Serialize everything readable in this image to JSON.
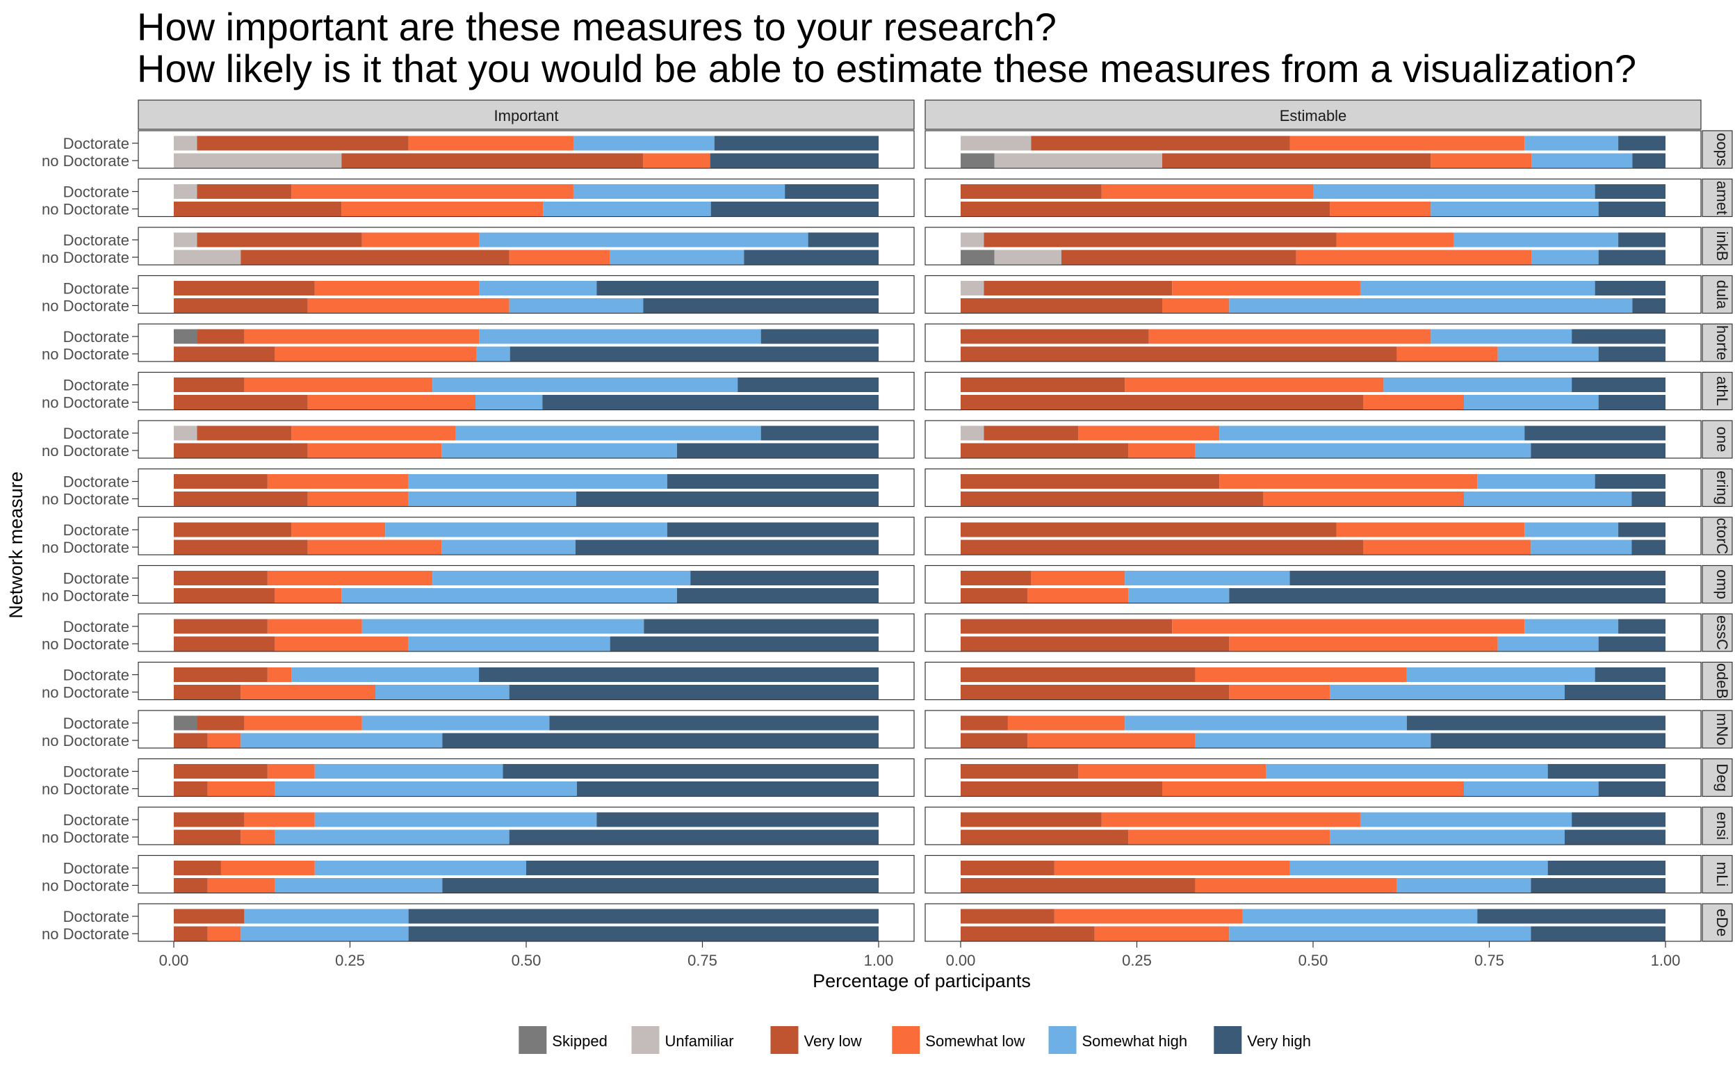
{
  "chart_data": {
    "type": "bar",
    "orientation": "horizontal",
    "stacked": true,
    "title_lines": [
      "How important are these measures to your research?",
      "How likely is it that you would be able to estimate these measures from a visualization?"
    ],
    "xlabel": "Percentage of participants",
    "ylabel": "Network measure",
    "xlim": [
      0,
      1
    ],
    "x_ticks": [
      "0.00",
      "0.25",
      "0.50",
      "0.75",
      "1.00"
    ],
    "grid": false,
    "legend_position": "bottom",
    "panels": [
      "Important",
      "Estimable"
    ],
    "groups": [
      "Doctorate",
      "no Doctorate"
    ],
    "series": [
      {
        "name": "Skipped",
        "color": "#7a7a7a"
      },
      {
        "name": "Unfamiliar",
        "color": "#c3bcba"
      },
      {
        "name": "Very low",
        "color": "#c05330"
      },
      {
        "name": "Somewhat low",
        "color": "#fb6c3b"
      },
      {
        "name": "Somewhat high",
        "color": "#6eb0e6"
      },
      {
        "name": "Very high",
        "color": "#3a5a78"
      }
    ],
    "facets": [
      {
        "strip": "oops",
        "Important": {
          "Doctorate": [
            0,
            0.033,
            0.3,
            0.234,
            0.2,
            0.233
          ],
          "no Doctorate": [
            0,
            0.238,
            0.428,
            0.095,
            0,
            0.239
          ]
        },
        "Estimable": {
          "Doctorate": [
            0,
            0.1,
            0.367,
            0.333,
            0.133,
            0.067
          ],
          "no Doctorate": [
            0.048,
            0.238,
            0.381,
            0.143,
            0.143,
            0.047
          ]
        }
      },
      {
        "strip": "amet",
        "Important": {
          "Doctorate": [
            0,
            0.033,
            0.134,
            0.4,
            0.3,
            0.133
          ],
          "no Doctorate": [
            0,
            0,
            0.238,
            0.286,
            0.238,
            0.238
          ]
        },
        "Estimable": {
          "Doctorate": [
            0,
            0,
            0.2,
            0.3,
            0.4,
            0.1
          ],
          "no Doctorate": [
            0,
            0,
            0.524,
            0.143,
            0.238,
            0.095
          ]
        }
      },
      {
        "strip": "inkB",
        "Important": {
          "Doctorate": [
            0,
            0.033,
            0.234,
            0.166,
            0.467,
            0.1
          ],
          "no Doctorate": [
            0,
            0.095,
            0.381,
            0.143,
            0.19,
            0.191
          ]
        },
        "Estimable": {
          "Doctorate": [
            0,
            0.033,
            0.5,
            0.167,
            0.233,
            0.067
          ],
          "no Doctorate": [
            0.048,
            0.095,
            0.333,
            0.334,
            0.095,
            0.095
          ]
        }
      },
      {
        "strip": "dula",
        "Important": {
          "Doctorate": [
            0,
            0,
            0.2,
            0.233,
            0.167,
            0.4
          ],
          "no Doctorate": [
            0,
            0,
            0.19,
            0.286,
            0.19,
            0.334
          ]
        },
        "Estimable": {
          "Doctorate": [
            0,
            0.033,
            0.267,
            0.267,
            0.333,
            0.1
          ],
          "no Doctorate": [
            0,
            0,
            0.286,
            0.095,
            0.572,
            0.047
          ]
        }
      },
      {
        "strip": "horte",
        "Important": {
          "Doctorate": [
            0.033,
            0,
            0.067,
            0.333,
            0.4,
            0.167
          ],
          "no Doctorate": [
            0,
            0,
            0.143,
            0.286,
            0.048,
            0.523
          ]
        },
        "Estimable": {
          "Doctorate": [
            0,
            0,
            0.267,
            0.4,
            0.2,
            0.133
          ],
          "no Doctorate": [
            0,
            0,
            0.619,
            0.143,
            0.143,
            0.095
          ]
        }
      },
      {
        "strip": "athL",
        "Important": {
          "Doctorate": [
            0,
            0,
            0.1,
            0.267,
            0.433,
            0.2
          ],
          "no Doctorate": [
            0,
            0,
            0.19,
            0.238,
            0.095,
            0.477
          ]
        },
        "Estimable": {
          "Doctorate": [
            0,
            0,
            0.233,
            0.367,
            0.267,
            0.133
          ],
          "no Doctorate": [
            0,
            0,
            0.571,
            0.143,
            0.191,
            0.095
          ]
        }
      },
      {
        "strip": "one",
        "Important": {
          "Doctorate": [
            0,
            0.033,
            0.134,
            0.233,
            0.433,
            0.167
          ],
          "no Doctorate": [
            0,
            0,
            0.19,
            0.19,
            0.334,
            0.286
          ]
        },
        "Estimable": {
          "Doctorate": [
            0,
            0.033,
            0.134,
            0.2,
            0.433,
            0.2
          ],
          "no Doctorate": [
            0,
            0,
            0.238,
            0.095,
            0.476,
            0.191
          ]
        }
      },
      {
        "strip": "ering",
        "Important": {
          "Doctorate": [
            0,
            0,
            0.133,
            0.2,
            0.367,
            0.3
          ],
          "no Doctorate": [
            0,
            0,
            0.19,
            0.143,
            0.238,
            0.429
          ]
        },
        "Estimable": {
          "Doctorate": [
            0,
            0,
            0.367,
            0.366,
            0.167,
            0.1
          ],
          "no Doctorate": [
            0,
            0,
            0.429,
            0.285,
            0.238,
            0.048
          ]
        }
      },
      {
        "strip": "ctorC",
        "Important": {
          "Doctorate": [
            0,
            0,
            0.167,
            0.133,
            0.4,
            0.3
          ],
          "no Doctorate": [
            0,
            0,
            0.19,
            0.19,
            0.19,
            0.43
          ]
        },
        "Estimable": {
          "Doctorate": [
            0,
            0,
            0.533,
            0.267,
            0.133,
            0.067
          ],
          "no Doctorate": [
            0,
            0,
            0.571,
            0.238,
            0.143,
            0.048
          ]
        }
      },
      {
        "strip": "omp",
        "Important": {
          "Doctorate": [
            0,
            0,
            0.133,
            0.234,
            0.366,
            0.267
          ],
          "no Doctorate": [
            0,
            0,
            0.143,
            0.095,
            0.476,
            0.286
          ]
        },
        "Estimable": {
          "Doctorate": [
            0,
            0,
            0.1,
            0.133,
            0.234,
            0.533
          ],
          "no Doctorate": [
            0,
            0,
            0.095,
            0.143,
            0.143,
            0.619
          ]
        }
      },
      {
        "strip": "essC",
        "Important": {
          "Doctorate": [
            0,
            0,
            0.133,
            0.134,
            0.4,
            0.333
          ],
          "no Doctorate": [
            0,
            0,
            0.143,
            0.19,
            0.286,
            0.381
          ]
        },
        "Estimable": {
          "Doctorate": [
            0,
            0,
            0.3,
            0.5,
            0.133,
            0.067
          ],
          "no Doctorate": [
            0,
            0,
            0.381,
            0.381,
            0.143,
            0.095
          ]
        }
      },
      {
        "strip": "odeB",
        "Important": {
          "Doctorate": [
            0,
            0,
            0.133,
            0.034,
            0.266,
            0.567
          ],
          "no Doctorate": [
            0,
            0,
            0.095,
            0.191,
            0.19,
            0.524
          ]
        },
        "Estimable": {
          "Doctorate": [
            0,
            0,
            0.333,
            0.3,
            0.267,
            0.1
          ],
          "no Doctorate": [
            0,
            0,
            0.381,
            0.143,
            0.333,
            0.143
          ]
        }
      },
      {
        "strip": "mNo",
        "Important": {
          "Doctorate": [
            0.033,
            0,
            0.067,
            0.167,
            0.266,
            0.467
          ],
          "no Doctorate": [
            0,
            0,
            0.048,
            0.047,
            0.286,
            0.619
          ]
        },
        "Estimable": {
          "Doctorate": [
            0,
            0,
            0.067,
            0.166,
            0.4,
            0.367
          ],
          "no Doctorate": [
            0,
            0,
            0.095,
            0.238,
            0.334,
            0.333
          ]
        }
      },
      {
        "strip": "Deg",
        "Important": {
          "Doctorate": [
            0,
            0,
            0.133,
            0.067,
            0.267,
            0.533
          ],
          "no Doctorate": [
            0,
            0,
            0.048,
            0.095,
            0.429,
            0.428
          ]
        },
        "Estimable": {
          "Doctorate": [
            0,
            0,
            0.167,
            0.266,
            0.4,
            0.167
          ],
          "no Doctorate": [
            0,
            0,
            0.286,
            0.428,
            0.191,
            0.095
          ]
        }
      },
      {
        "strip": "ensi",
        "Important": {
          "Doctorate": [
            0,
            0,
            0.1,
            0.1,
            0.4,
            0.4
          ],
          "no Doctorate": [
            0,
            0,
            0.095,
            0.048,
            0.333,
            0.524
          ]
        },
        "Estimable": {
          "Doctorate": [
            0,
            0,
            0.2,
            0.367,
            0.3,
            0.133
          ],
          "no Doctorate": [
            0,
            0,
            0.238,
            0.286,
            0.333,
            0.143
          ]
        }
      },
      {
        "strip": "mLi",
        "Important": {
          "Doctorate": [
            0,
            0,
            0.067,
            0.133,
            0.3,
            0.5
          ],
          "no Doctorate": [
            0,
            0,
            0.048,
            0.095,
            0.238,
            0.619
          ]
        },
        "Estimable": {
          "Doctorate": [
            0,
            0,
            0.133,
            0.334,
            0.366,
            0.167
          ],
          "no Doctorate": [
            0,
            0,
            0.333,
            0.286,
            0.19,
            0.191
          ]
        }
      },
      {
        "strip": "eDe",
        "Important": {
          "Doctorate": [
            0,
            0,
            0.1,
            0,
            0.233,
            0.667
          ],
          "no Doctorate": [
            0,
            0,
            0.048,
            0.047,
            0.238,
            0.667
          ]
        },
        "Estimable": {
          "Doctorate": [
            0,
            0,
            0.133,
            0.267,
            0.333,
            0.267
          ],
          "no Doctorate": [
            0,
            0,
            0.19,
            0.191,
            0.428,
            0.191
          ]
        }
      }
    ]
  }
}
